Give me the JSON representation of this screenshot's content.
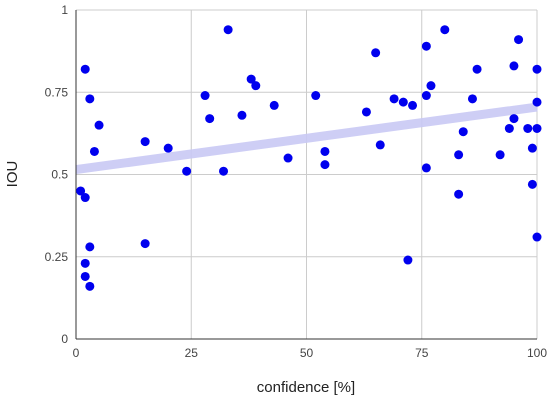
{
  "chart_data": {
    "type": "scatter",
    "title": "",
    "xlabel": "confidence [%]",
    "ylabel": "IOU",
    "xlim": [
      0,
      100
    ],
    "ylim": [
      0,
      1
    ],
    "x_ticks": [
      "0",
      "25",
      "50",
      "75",
      "100"
    ],
    "y_ticks": [
      "0",
      "0.25",
      "0.5",
      "0.75",
      "1"
    ],
    "grid": true,
    "colors": {
      "points": "#0000ee",
      "trendline": "#c9c9f5",
      "grid": "#cccccc",
      "axis": "#333333"
    },
    "series": [
      {
        "points": [
          {
            "x": 1,
            "y": 0.45
          },
          {
            "x": 2,
            "y": 0.43
          },
          {
            "x": 2,
            "y": 0.82
          },
          {
            "x": 2,
            "y": 0.23
          },
          {
            "x": 2,
            "y": 0.19
          },
          {
            "x": 3,
            "y": 0.73
          },
          {
            "x": 3,
            "y": 0.28
          },
          {
            "x": 3,
            "y": 0.16
          },
          {
            "x": 4,
            "y": 0.57
          },
          {
            "x": 5,
            "y": 0.65
          },
          {
            "x": 15,
            "y": 0.6
          },
          {
            "x": 15,
            "y": 0.29
          },
          {
            "x": 20,
            "y": 0.58
          },
          {
            "x": 24,
            "y": 0.51
          },
          {
            "x": 28,
            "y": 0.74
          },
          {
            "x": 29,
            "y": 0.67
          },
          {
            "x": 32,
            "y": 0.51
          },
          {
            "x": 33,
            "y": 0.94
          },
          {
            "x": 36,
            "y": 0.68
          },
          {
            "x": 38,
            "y": 0.79
          },
          {
            "x": 39,
            "y": 0.77
          },
          {
            "x": 43,
            "y": 0.71
          },
          {
            "x": 46,
            "y": 0.55
          },
          {
            "x": 52,
            "y": 0.74
          },
          {
            "x": 54,
            "y": 0.57
          },
          {
            "x": 54,
            "y": 0.53
          },
          {
            "x": 63,
            "y": 0.69
          },
          {
            "x": 65,
            "y": 0.87
          },
          {
            "x": 66,
            "y": 0.59
          },
          {
            "x": 69,
            "y": 0.73
          },
          {
            "x": 71,
            "y": 0.72
          },
          {
            "x": 72,
            "y": 0.24
          },
          {
            "x": 73,
            "y": 0.71
          },
          {
            "x": 76,
            "y": 0.89
          },
          {
            "x": 76,
            "y": 0.74
          },
          {
            "x": 76,
            "y": 0.52
          },
          {
            "x": 77,
            "y": 0.77
          },
          {
            "x": 80,
            "y": 0.94
          },
          {
            "x": 83,
            "y": 0.56
          },
          {
            "x": 83,
            "y": 0.44
          },
          {
            "x": 84,
            "y": 0.63
          },
          {
            "x": 86,
            "y": 0.73
          },
          {
            "x": 87,
            "y": 0.82
          },
          {
            "x": 92,
            "y": 0.56
          },
          {
            "x": 94,
            "y": 0.64
          },
          {
            "x": 95,
            "y": 0.83
          },
          {
            "x": 95,
            "y": 0.67
          },
          {
            "x": 96,
            "y": 0.91
          },
          {
            "x": 98,
            "y": 0.64
          },
          {
            "x": 99,
            "y": 0.58
          },
          {
            "x": 99,
            "y": 0.47
          },
          {
            "x": 100,
            "y": 0.82
          },
          {
            "x": 100,
            "y": 0.72
          },
          {
            "x": 100,
            "y": 0.64
          },
          {
            "x": 100,
            "y": 0.31
          }
        ]
      }
    ],
    "trendline": {
      "x": [
        0,
        100
      ],
      "y": [
        0.515,
        0.705
      ]
    }
  }
}
